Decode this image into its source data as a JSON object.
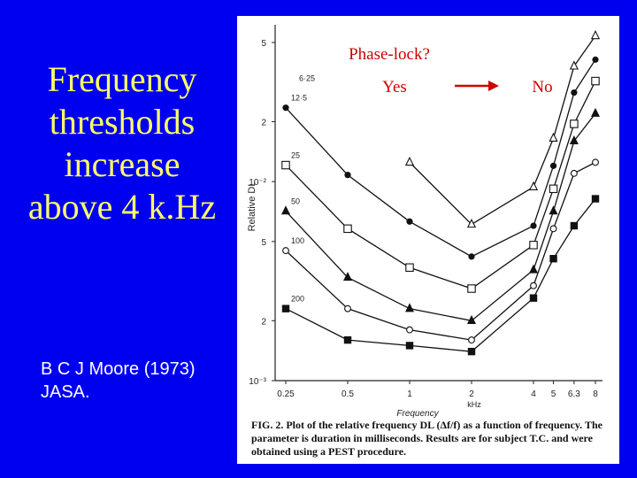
{
  "slide": {
    "title_lines": [
      "Frequency",
      "thresholds",
      "increase",
      "above 4 k.Hz"
    ],
    "citation_lines": [
      "B C J  Moore (1973)",
      "JASA."
    ],
    "colors": {
      "background": "#0000f0",
      "title": "#ffff66",
      "citation": "#ffffff",
      "arrow": "#d00000"
    }
  },
  "annotations": {
    "phase_lock": "Phase-lock?",
    "yes": "Yes",
    "no": "No"
  },
  "caption": "FIG. 2. Plot of the relative frequency DL (Δf/f) as a function of frequency. The parameter is duration in milliseconds. Results are for subject T.C. and were obtained using a PEST procedure.",
  "chart_data": {
    "type": "line",
    "xlabel": "Frequency",
    "xunit": "kHz",
    "ylabel": "Relative  DL",
    "x_scale": "log",
    "y_scale": "log",
    "x_tick_labels": [
      "0.25",
      "0.5",
      "1",
      "2",
      "4",
      "5",
      "6.3",
      "8"
    ],
    "y_tick_labels": [
      "5",
      "2",
      "10⁻²",
      "5",
      "2",
      "10⁻³"
    ],
    "grid": false,
    "legend": "inline labels on each curve",
    "x": [
      0.25,
      0.5,
      1,
      2,
      4,
      5,
      6.3,
      8
    ],
    "series": [
      {
        "name": "6·25",
        "marker": "open-triangle",
        "values": [
          null,
          null,
          0.0125,
          0.0061,
          0.0094,
          0.0165,
          0.038,
          0.054
        ]
      },
      {
        "name": "12·5",
        "marker": "filled-circle",
        "values": [
          0.0235,
          0.0108,
          0.0063,
          0.0042,
          0.006,
          0.012,
          0.028,
          0.041
        ]
      },
      {
        "name": "25",
        "marker": "open-square",
        "values": [
          0.0121,
          0.0058,
          0.0037,
          0.0029,
          0.0048,
          0.0092,
          0.0195,
          0.032
        ]
      },
      {
        "name": "50",
        "marker": "filled-triangle",
        "values": [
          0.0071,
          0.0033,
          0.0023,
          0.002,
          0.0036,
          0.0071,
          0.016,
          0.022
        ]
      },
      {
        "name": "100",
        "marker": "open-circle",
        "values": [
          0.0045,
          0.0023,
          0.0018,
          0.0016,
          0.003,
          0.0058,
          0.011,
          0.0125
        ]
      },
      {
        "name": "200",
        "marker": "filled-square",
        "values": [
          0.0023,
          0.0016,
          0.0015,
          0.0014,
          0.0026,
          0.0041,
          0.006,
          0.0082
        ]
      }
    ]
  }
}
